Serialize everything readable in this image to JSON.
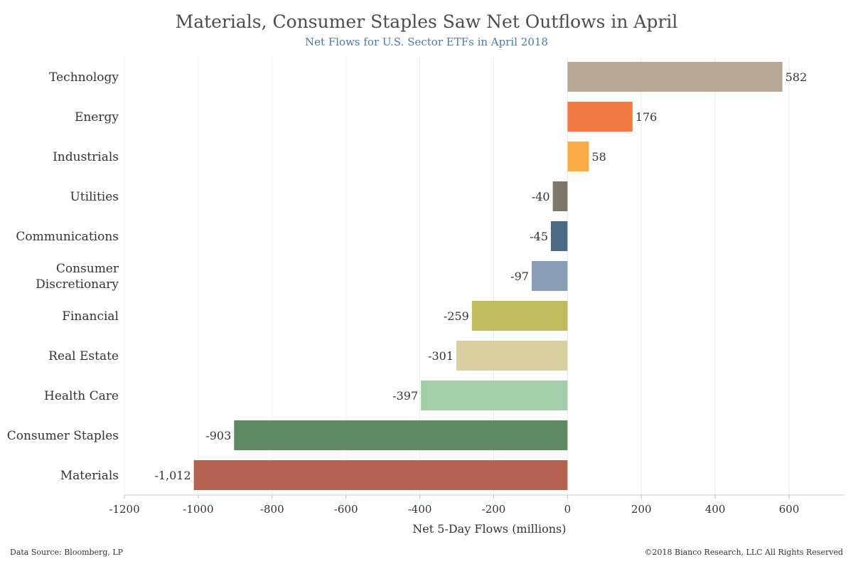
{
  "chart_data": {
    "type": "bar",
    "orientation": "horizontal",
    "title": "Materials, Consumer Staples Saw Net Outflows in April",
    "subtitle": "Net Flows for U.S. Sector ETFs in April 2018",
    "xlabel": "Net 5-Day Flows (millions)",
    "xlim": [
      -1200,
      750
    ],
    "xticks": [
      "-1200",
      "-1000",
      "-800",
      "-600",
      "-400",
      "-200",
      "0",
      "200",
      "400",
      "600"
    ],
    "xtick_values": [
      -1200,
      -1000,
      -800,
      -600,
      -400,
      -200,
      0,
      200,
      400,
      600
    ],
    "grid": true,
    "categories": [
      "Technology",
      "Energy",
      "Industrials",
      "Utilities",
      "Communications",
      "Consumer Discretionary",
      "Financial",
      "Real Estate",
      "Health Care",
      "Consumer Staples",
      "Materials"
    ],
    "category_lines": [
      [
        "Technology"
      ],
      [
        "Energy"
      ],
      [
        "Industrials"
      ],
      [
        "Utilities"
      ],
      [
        "Communications"
      ],
      [
        "Consumer",
        "Discretionary"
      ],
      [
        "Financial"
      ],
      [
        "Real Estate"
      ],
      [
        "Health Care"
      ],
      [
        "Consumer Staples"
      ],
      [
        "Materials"
      ]
    ],
    "values": [
      582,
      176,
      58,
      -40,
      -45,
      -97,
      -259,
      -301,
      -397,
      -903,
      -1012
    ],
    "value_labels": [
      "582",
      "176",
      "58",
      "-40",
      "-45",
      "-97",
      "-259",
      "-301",
      "-397",
      "-903",
      "-1,012"
    ],
    "colors": [
      "#b7a794",
      "#f47942",
      "#fbad4a",
      "#7f766c",
      "#4d6a85",
      "#879db3",
      "#c0bb5e",
      "#d8d0a0",
      "#a3cea9",
      "#5f8b63",
      "#b46352"
    ]
  },
  "footer": {
    "source": "Data Source: Bloomberg, LP",
    "copyright": "©2018 Bianco Research, LLC  All Rights Reserved"
  }
}
